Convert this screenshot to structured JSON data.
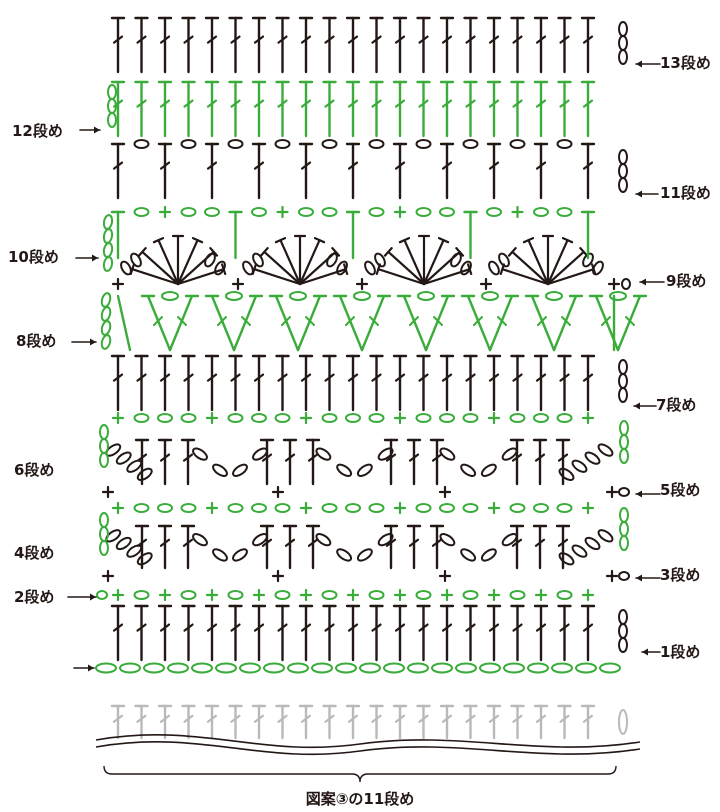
{
  "colors": {
    "brown": "#3e2a1e",
    "green": "#3aac3a",
    "gray": "#b9b9b9",
    "ink": "#231815"
  },
  "left_labels": [
    {
      "text": "12段め",
      "row": 12
    },
    {
      "text": "10段め",
      "row": 10
    },
    {
      "text": "8段め",
      "row": 8
    },
    {
      "text": "6段め",
      "row": 6
    },
    {
      "text": "4段め",
      "row": 4
    },
    {
      "text": "2段め",
      "row": 2
    }
  ],
  "right_labels": [
    {
      "text": "13段め",
      "row": 13
    },
    {
      "text": "11段め",
      "row": 11
    },
    {
      "text": "9段め",
      "row": 9
    },
    {
      "text": "7段め",
      "row": 7
    },
    {
      "text": "5段め",
      "row": 5
    },
    {
      "text": "3段め",
      "row": 3
    },
    {
      "text": "1段め",
      "row": 1
    }
  ],
  "caption": "図案③の11段め"
}
